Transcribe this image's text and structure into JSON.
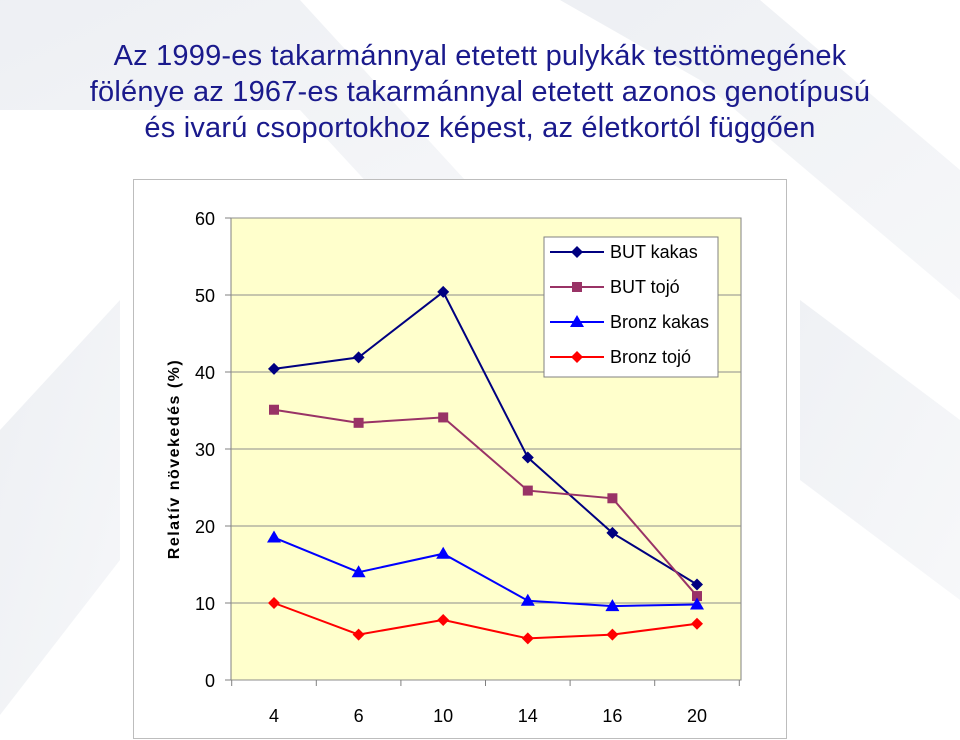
{
  "slide": {
    "title_lines": [
      "Az 1999-es takarmánnyal etetett pulykák testtömegének",
      "fölénye az 1967-es takarmánnyal etetett azonos genotípusú",
      "és ivarú csoportokhoz képest, az életkortól függően"
    ]
  },
  "chart_data": {
    "type": "line",
    "title": "",
    "xlabel": "",
    "ylabel": "Relatív növekedés (%)",
    "ylim": [
      0,
      60
    ],
    "yticks": [
      0,
      10,
      20,
      30,
      40,
      50,
      60
    ],
    "categories": [
      "4",
      "6",
      "10",
      "14",
      "16",
      "20"
    ],
    "grid": true,
    "plot_background": "#ffffcc",
    "legend_position": "top-right",
    "series": [
      {
        "name": "BUT kakas",
        "color": "#000080",
        "marker": "diamond",
        "values": [
          40.4,
          41.9,
          50.4,
          28.9,
          19.1,
          12.4
        ]
      },
      {
        "name": "BUT tojó",
        "color": "#993366",
        "marker": "square",
        "values": [
          35.1,
          33.4,
          34.1,
          24.6,
          23.6,
          10.9
        ]
      },
      {
        "name": "Bronz kakas",
        "color": "#0000ff",
        "marker": "triangle",
        "values": [
          18.5,
          14.0,
          16.4,
          10.3,
          9.6,
          9.8
        ]
      },
      {
        "name": "Bronz tojó",
        "color": "#ff0000",
        "marker": "diamond",
        "values": [
          10.0,
          5.9,
          7.8,
          5.4,
          5.9,
          7.3
        ]
      }
    ]
  }
}
